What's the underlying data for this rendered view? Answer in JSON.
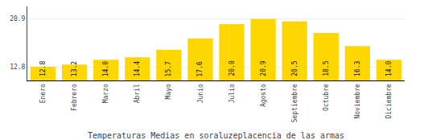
{
  "chart_data": {
    "type": "bar",
    "title": "Temperaturas Medias en soraluzeplacencia de las armas",
    "categories": [
      "Enero",
      "Febrero",
      "Marzo",
      "Abril",
      "Mayo",
      "Junio",
      "Julio",
      "Agosto",
      "Septiembre",
      "Octubre",
      "Noviembre",
      "Diciembre"
    ],
    "values": [
      12.8,
      13.2,
      14.0,
      14.4,
      15.7,
      17.6,
      20.0,
      20.9,
      20.5,
      18.5,
      16.3,
      14.0
    ],
    "value_labels": [
      "12.8",
      "13.2",
      "14.0",
      "14.4",
      "15.7",
      "17.6",
      "20.0",
      "20.9",
      "20.5",
      "18.5",
      "16.3",
      "14.0"
    ],
    "data_labels": true,
    "color": "#FFD700",
    "ylim": [
      10.5,
      23.0
    ],
    "yticks": [
      12.8,
      20.9
    ],
    "y2lim": [
      10.5,
      23.0
    ],
    "y2ticks": [
      12.8,
      20.9
    ],
    "grid": true
  }
}
